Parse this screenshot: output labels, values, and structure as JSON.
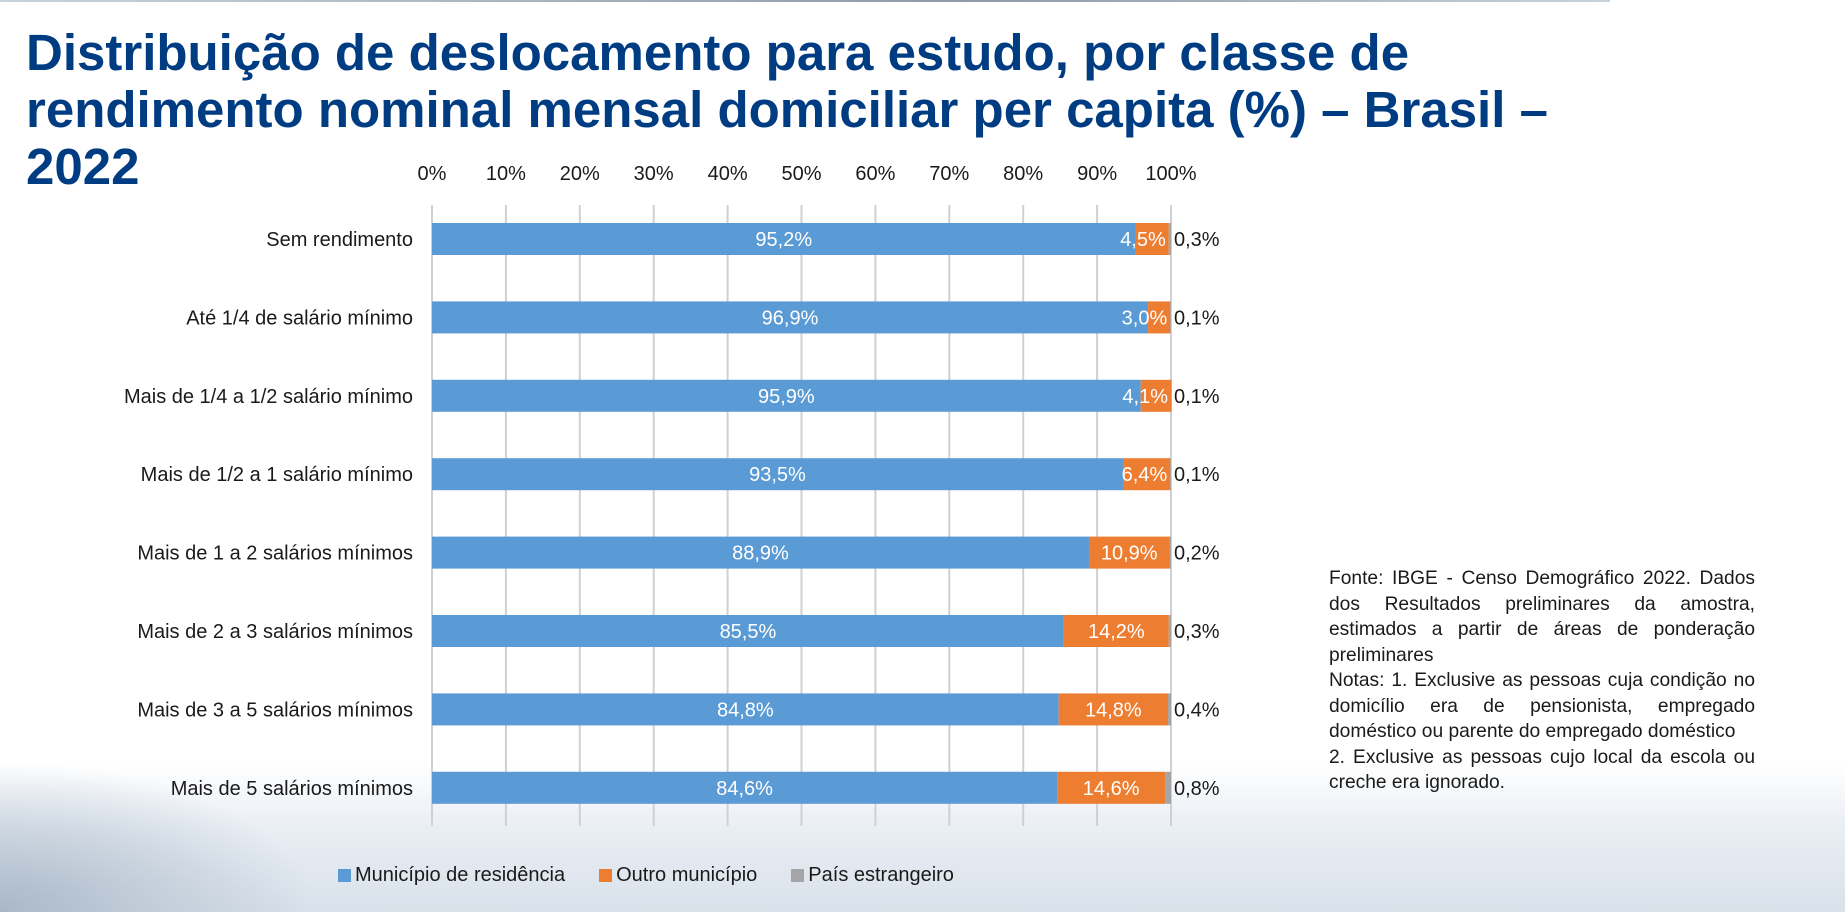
{
  "title": "Distribuição de deslocamento para estudo, por classe de rendimento nominal mensal domiciliar per capita (%) – Brasil – 2022",
  "colors": {
    "title": "#003c82",
    "series_residencia": "#5b9bd5",
    "series_outro": "#ed7d31",
    "series_estrangeiro": "#a5a5a5",
    "grid": "#d0d0d0"
  },
  "chart_data": {
    "type": "bar",
    "orientation": "horizontal",
    "stacked": "percent",
    "xlim": [
      0,
      100
    ],
    "x_ticks": [
      "0%",
      "10%",
      "20%",
      "30%",
      "40%",
      "50%",
      "60%",
      "70%",
      "80%",
      "90%",
      "100%"
    ],
    "categories": [
      "Sem rendimento",
      "Até 1/4 de salário mínimo",
      "Mais de 1/4 a 1/2 salário mínimo",
      "Mais de 1/2 a 1 salário mínimo",
      "Mais de 1 a 2 salários mínimos",
      "Mais de 2 a 3 salários mínimos",
      "Mais de 3 a 5 salários mínimos",
      "Mais de 5 salários mínimos"
    ],
    "series": [
      {
        "name": "Município de residência",
        "color_key": "series_residencia",
        "values": [
          95.2,
          96.9,
          95.9,
          93.5,
          88.9,
          85.5,
          84.8,
          84.6
        ],
        "labels": [
          "95,2%",
          "96,9%",
          "95,9%",
          "93,5%",
          "88,9%",
          "85,5%",
          "84,8%",
          "84,6%"
        ]
      },
      {
        "name": "Outro município",
        "color_key": "series_outro",
        "values": [
          4.5,
          3.0,
          4.1,
          6.4,
          10.9,
          14.2,
          14.8,
          14.6
        ],
        "labels": [
          "4,5%",
          "3,0%",
          "4,1%",
          "6,4%",
          "10,9%",
          "14,2%",
          "14,8%",
          "14,6%"
        ]
      },
      {
        "name": "País estrangeiro",
        "color_key": "series_estrangeiro",
        "values": [
          0.3,
          0.1,
          0.1,
          0.1,
          0.2,
          0.3,
          0.4,
          0.8
        ],
        "labels": [
          "0,3%",
          "0,1%",
          "0,1%",
          "0,1%",
          "0,2%",
          "0,3%",
          "0,4%",
          "0,8%"
        ]
      }
    ],
    "legend_position": "bottom"
  },
  "notes": {
    "fonte": "Fonte: IBGE - Censo Demográfico 2022. Dados dos Resultados preliminares da amostra, estimados a partir de áreas de ponderação preliminares",
    "nota1": "Notas: 1. Exclusive as pessoas cuja condição no domicílio era de pensionista, empregado doméstico ou parente do empregado doméstico",
    "nota2": "2. Exclusive as pessoas cujo local da escola ou creche era ignorado."
  }
}
